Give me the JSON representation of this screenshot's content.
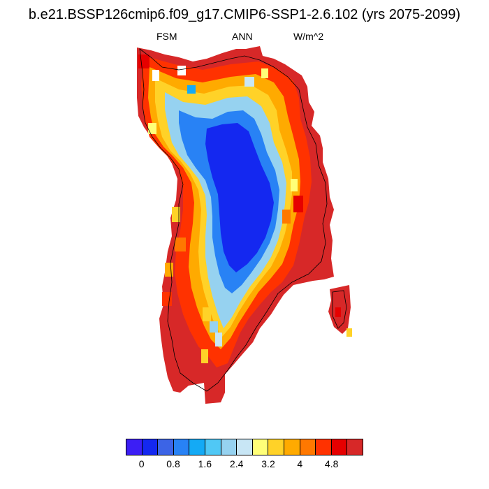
{
  "title": "b.e21.BSSP126cmip6.f09_g17.CMIP6-SSP1-2.6.102 (yrs 2075-2099)",
  "subtitle_left": "FSM",
  "subtitle_center": "ANN",
  "subtitle_right": "W/m^2",
  "colorbar": {
    "colors": [
      "#3c1ef5",
      "#1428f0",
      "#3c64e6",
      "#2882f5",
      "#14aaf5",
      "#50c8f5",
      "#96d2f0",
      "#c8e6f5",
      "#ffff78",
      "#ffd228",
      "#ffaa00",
      "#ff7800",
      "#ff3200",
      "#e60000",
      "#d72828"
    ],
    "tick_labels": [
      "0",
      "0.8",
      "1.6",
      "2.4",
      "3.2",
      "4",
      "4.8"
    ]
  }
}
